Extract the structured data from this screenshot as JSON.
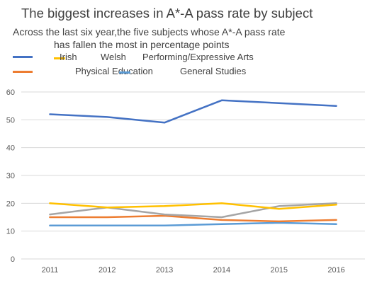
{
  "chart_data": {
    "type": "line",
    "title": "The biggest increases in A*-A pass rate by subject",
    "subtitle": [
      "Across the last six year,the five subjects whose  A*-A pass rate",
      "has fallen the most in percentage points"
    ],
    "x": [
      "2011",
      "2012",
      "2013",
      "2014",
      "2015",
      "2016"
    ],
    "ylim": [
      0,
      60
    ],
    "yticks": [
      0,
      10,
      20,
      30,
      40,
      50,
      60
    ],
    "grid": true,
    "legend_position": "top",
    "series": [
      {
        "name": "Irish",
        "color": "#4472C4",
        "values": [
          52,
          51,
          49,
          57,
          56,
          55
        ]
      },
      {
        "name": "Welsh",
        "color": "#FFC000",
        "values": [
          20,
          18.5,
          19,
          20,
          18,
          19.5
        ]
      },
      {
        "name": "Performing/Expressive Arts",
        "color": "#A5A5A5",
        "values": [
          16,
          18.5,
          16,
          15,
          19,
          20
        ]
      },
      {
        "name": "Physical Education",
        "color": "#ED7D31",
        "values": [
          15,
          15,
          15.5,
          14,
          13.5,
          14
        ]
      },
      {
        "name": "General Studies",
        "color": "#5B9BD5",
        "values": [
          12,
          12,
          12,
          12.5,
          13,
          12.5
        ]
      }
    ]
  }
}
